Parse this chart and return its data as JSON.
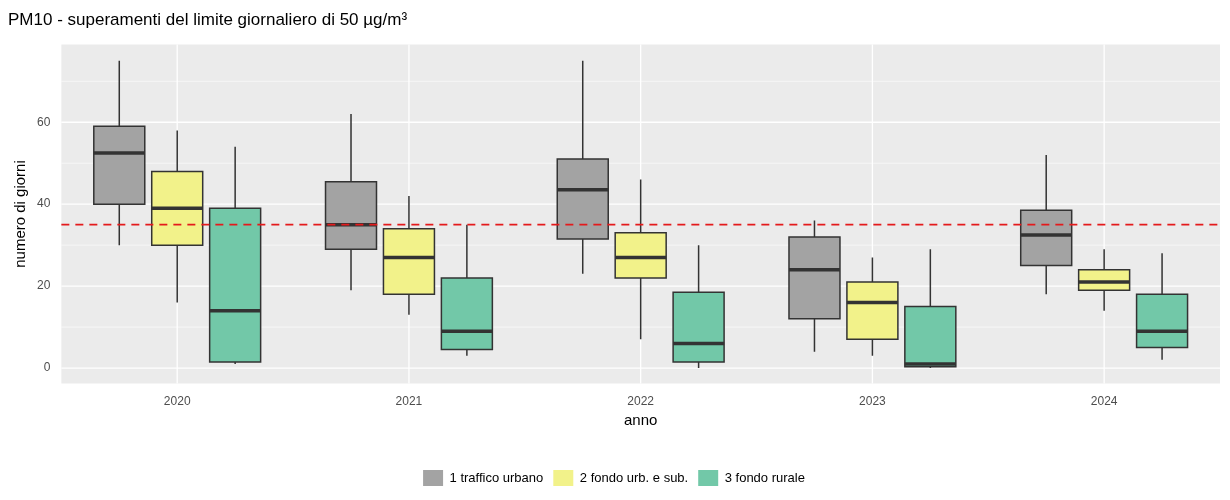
{
  "chart_data": {
    "type": "box",
    "title": "PM10 - superamenti del limite giornaliero di 50 µg/m³",
    "xlabel": "anno",
    "ylabel": "numero di giorni",
    "categories": [
      "2020",
      "2021",
      "2022",
      "2023",
      "2024"
    ],
    "series": [
      {
        "name": "1 traffico urbano",
        "color": "#a3a3a3",
        "boxes": [
          {
            "low": 30,
            "q1": 40,
            "median": 52.5,
            "q3": 59,
            "high": 75
          },
          {
            "low": 19,
            "q1": 29,
            "median": 35,
            "q3": 45.5,
            "high": 62
          },
          {
            "low": 23,
            "q1": 31.5,
            "median": 43.5,
            "q3": 51,
            "high": 75
          },
          {
            "low": 4,
            "q1": 12,
            "median": 24,
            "q3": 32,
            "high": 36
          },
          {
            "low": 18,
            "q1": 25,
            "median": 32.5,
            "q3": 38.5,
            "high": 52
          }
        ]
      },
      {
        "name": "2 fondo urb. e sub.",
        "color": "#f2f28a",
        "boxes": [
          {
            "low": 16,
            "q1": 30,
            "median": 39,
            "q3": 48,
            "high": 58
          },
          {
            "low": 13,
            "q1": 18,
            "median": 27,
            "q3": 34,
            "high": 42
          },
          {
            "low": 7,
            "q1": 22,
            "median": 27,
            "q3": 33,
            "high": 46
          },
          {
            "low": 3,
            "q1": 7,
            "median": 16,
            "q3": 21,
            "high": 27
          },
          {
            "low": 14,
            "q1": 19,
            "median": 21,
            "q3": 24,
            "high": 29
          }
        ]
      },
      {
        "name": "3 fondo rurale",
        "color": "#72c8a8",
        "boxes": [
          {
            "low": 1,
            "q1": 1.5,
            "median": 14,
            "q3": 39,
            "high": 54
          },
          {
            "low": 3,
            "q1": 4.5,
            "median": 9,
            "q3": 22,
            "high": 35
          },
          {
            "low": 0,
            "q1": 1.5,
            "median": 6,
            "q3": 18.5,
            "high": 30
          },
          {
            "low": 0,
            "q1": 0.3,
            "median": 1,
            "q3": 15,
            "high": 29
          },
          {
            "low": 2,
            "q1": 5,
            "median": 9,
            "q3": 18,
            "high": 28
          }
        ]
      }
    ],
    "ylim": [
      -3.8,
      79
    ],
    "yticks": [
      0,
      20,
      40,
      60
    ],
    "grid": true,
    "legend": "bottom",
    "ref_lines": [
      {
        "axis": "y",
        "value": 35,
        "color": "#e41a1c",
        "line_style": "dashed"
      }
    ]
  }
}
